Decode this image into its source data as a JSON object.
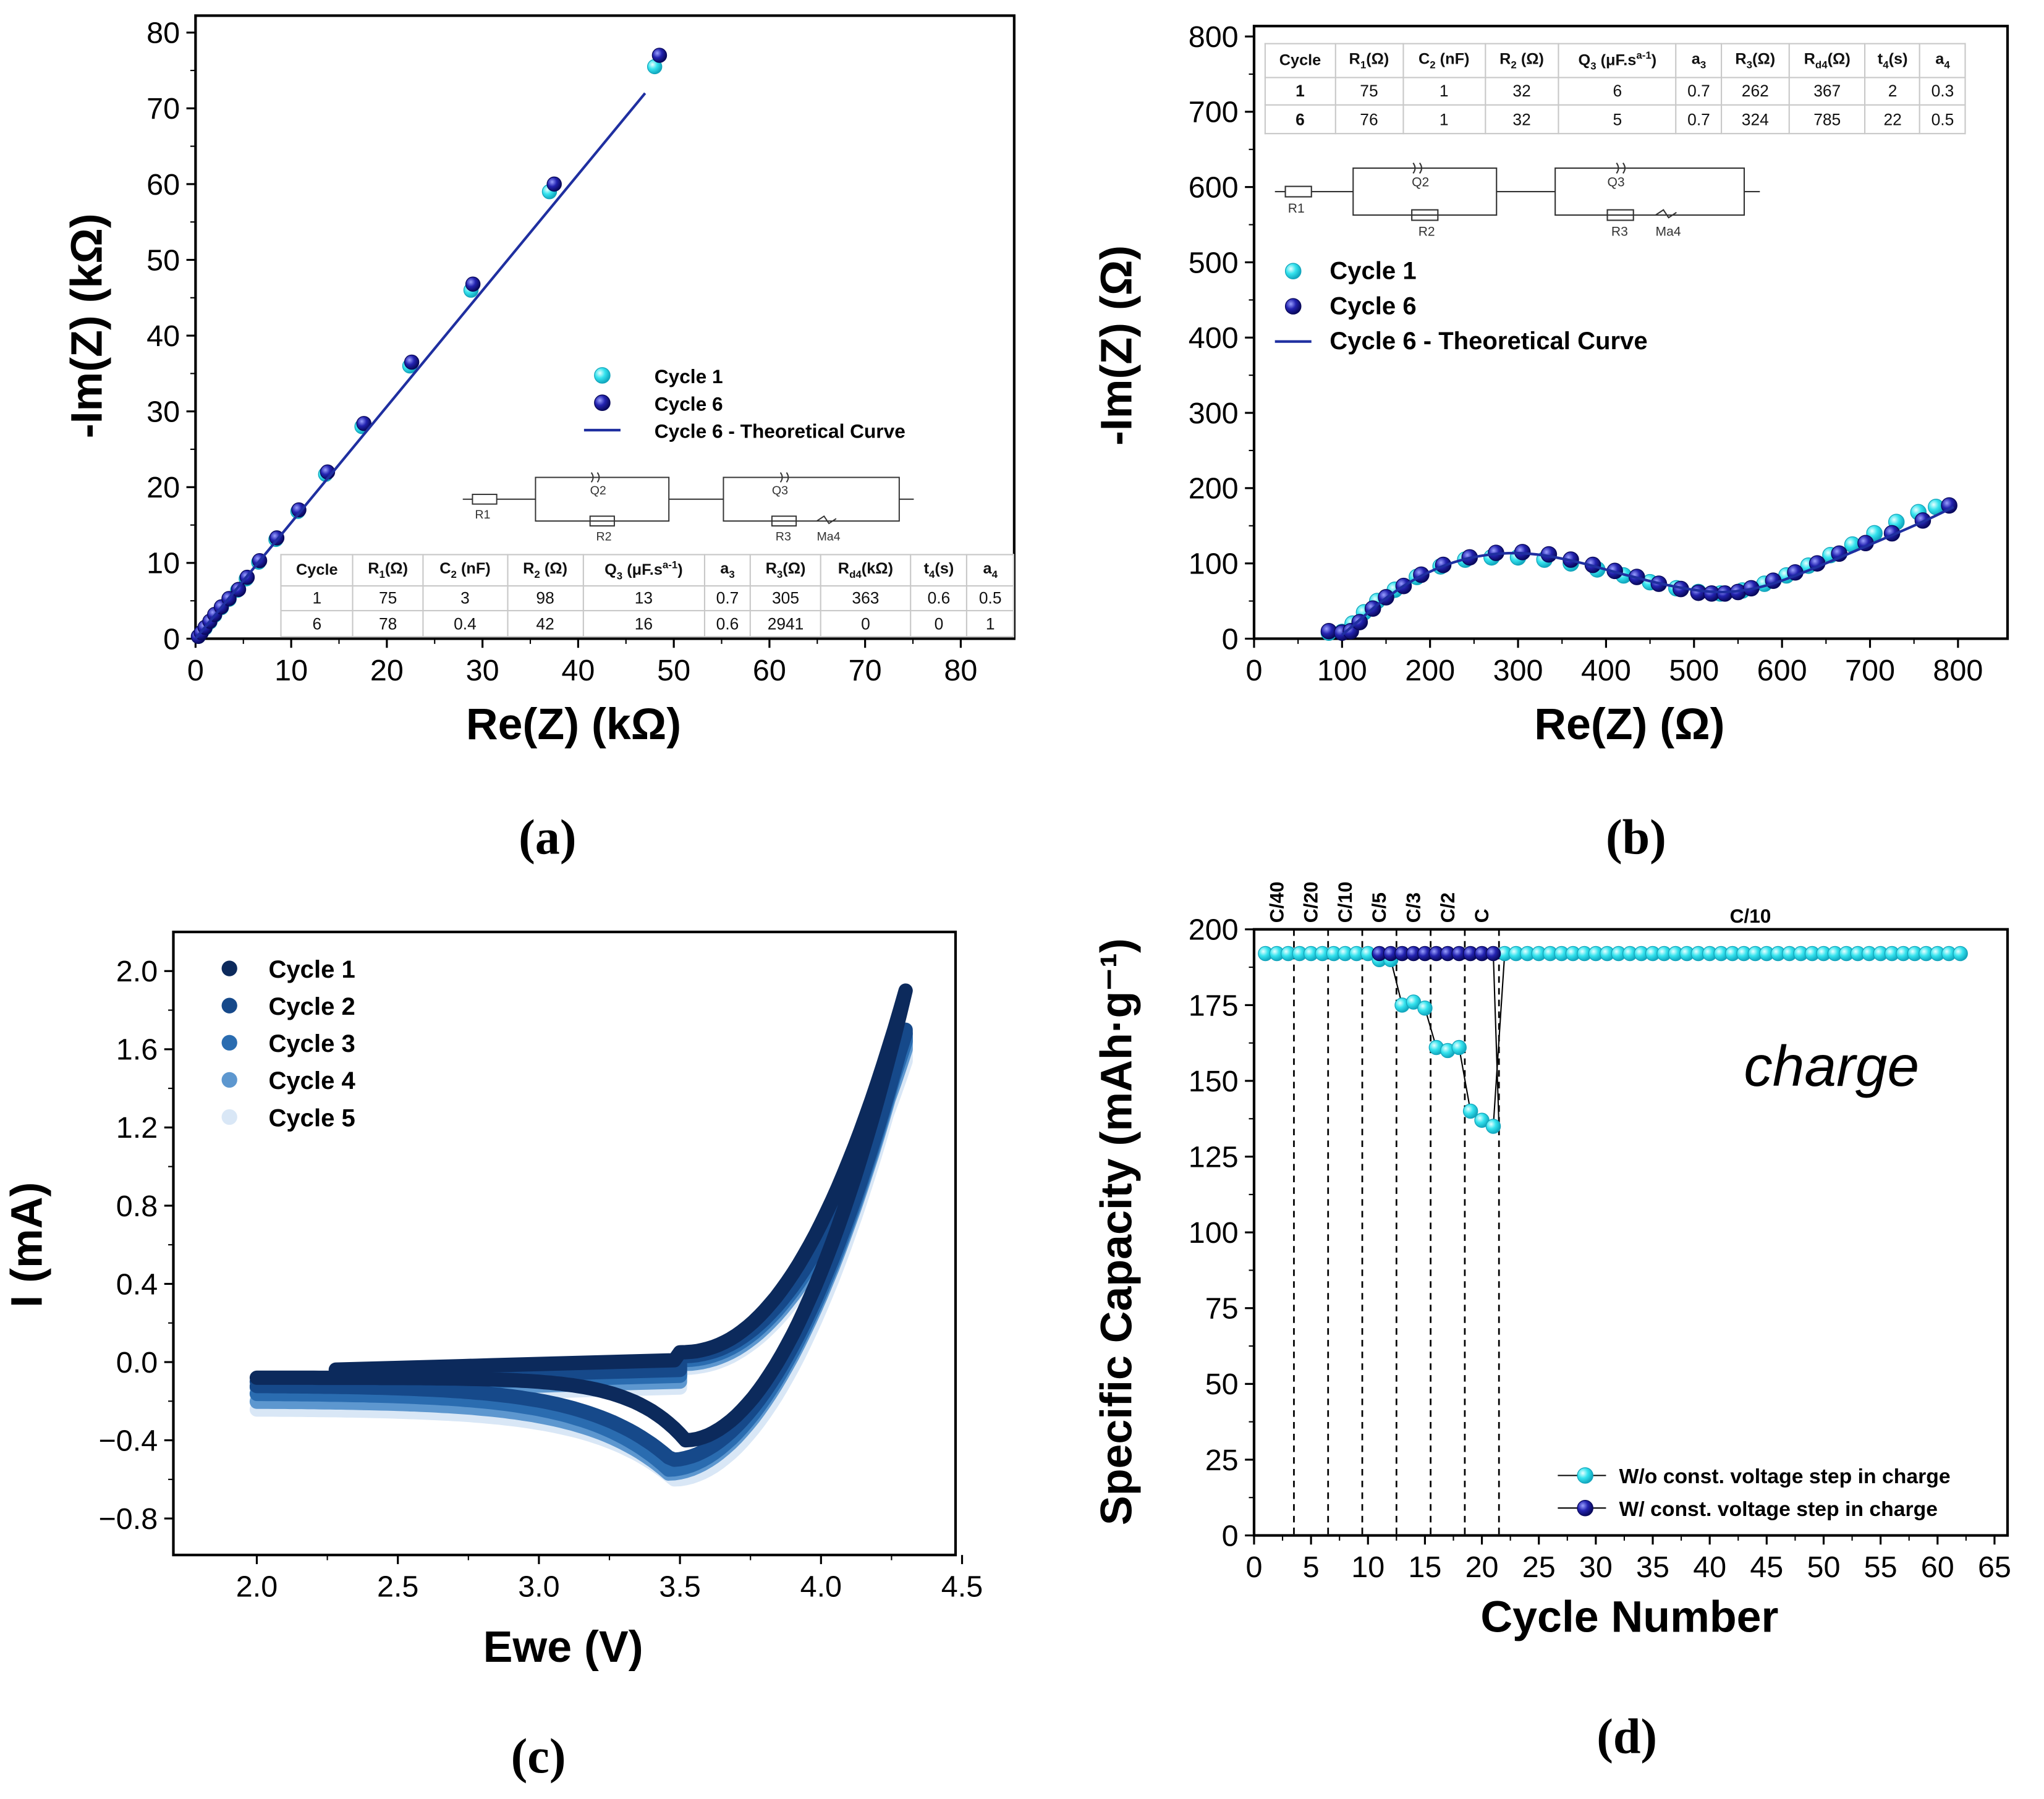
{
  "panel_labels": [
    "(a)",
    "(b)",
    "(c)",
    "(d)"
  ],
  "circuit": {
    "labels": [
      "R1",
      "Q2",
      "R2",
      "Q3",
      "R3",
      "Ma4"
    ]
  },
  "tables": {
    "a": {
      "header": [
        {
          "m": "Cycle"
        },
        {
          "m": "R",
          "sub": "1",
          "r": "(Ω)"
        },
        {
          "m": "C",
          "sub": "2",
          "r": " (nF)"
        },
        {
          "m": "R",
          "sub": "2",
          "r": " (Ω)"
        },
        {
          "m": "Q",
          "sub": "3",
          "r": " (μF.s",
          "sup": "a-1",
          "e": ")"
        },
        {
          "m": "a",
          "sub": "3"
        },
        {
          "m": "R",
          "sub": "3",
          "r": "(Ω)"
        },
        {
          "m": "R",
          "sub": "d4",
          "r": "(kΩ)"
        },
        {
          "m": "t",
          "sub": "4",
          "r": "(s)"
        },
        {
          "m": "a",
          "sub": "4"
        }
      ],
      "rows": [
        [
          "1",
          "75",
          "3",
          "98",
          "13",
          "0.7",
          "305",
          "363",
          "0.6",
          "0.5"
        ],
        [
          "6",
          "78",
          "0.4",
          "42",
          "16",
          "0.6",
          "2941",
          "0",
          "0",
          "1"
        ]
      ]
    },
    "b": {
      "header": [
        {
          "m": "Cycle"
        },
        {
          "m": "R",
          "sub": "1",
          "r": "(Ω)"
        },
        {
          "m": "C",
          "sub": "2",
          "r": " (nF)"
        },
        {
          "m": "R",
          "sub": "2",
          "r": " (Ω)"
        },
        {
          "m": "Q",
          "sub": "3",
          "r": " (μF.s",
          "sup": "a-1",
          "e": ")"
        },
        {
          "m": "a",
          "sub": "3"
        },
        {
          "m": "R",
          "sub": "3",
          "r": "(Ω)"
        },
        {
          "m": "R",
          "sub": "d4",
          "r": "(Ω)"
        },
        {
          "m": "t",
          "sub": "4",
          "r": "(s)"
        },
        {
          "m": "a",
          "sub": "4"
        }
      ],
      "rows": [
        [
          "1",
          "75",
          "1",
          "32",
          "6",
          "0.7",
          "262",
          "367",
          "2",
          "0.3"
        ],
        [
          "6",
          "76",
          "1",
          "32",
          "5",
          "0.7",
          "324",
          "785",
          "22",
          "0.5"
        ]
      ]
    }
  },
  "colors": {
    "cyan": "#35e3ee",
    "navy": "#1c1c9c",
    "line": "#1f2fa0",
    "cv": [
      "#0c2a5c",
      "#16498a",
      "#2a6cb0",
      "#5d97cf",
      "#d9e7f6"
    ]
  },
  "chart_data": [
    {
      "type": "scatter",
      "title": "",
      "xlabel": "Re(Z) (kΩ)",
      "ylabel": "-Im(Z) (kΩ)",
      "xlim": [
        0,
        80
      ],
      "ylim": [
        0,
        80
      ],
      "xticks": [
        "0",
        "10",
        "20",
        "30",
        "40",
        "50",
        "60",
        "70",
        "80"
      ],
      "yticks": [
        "0",
        "10",
        "20",
        "30",
        "40",
        "50",
        "60",
        "70",
        "80"
      ],
      "series": [
        {
          "name": "Cycle 1",
          "x": [
            0.3,
            0.6,
            1,
            1.5,
            2,
            2.7,
            3.5,
            4.4,
            5.3,
            6.6,
            8.4,
            10.7,
            13.6,
            17.4,
            22.4,
            28.8,
            37,
            48
          ],
          "y": [
            0.3,
            0.8,
            1.4,
            2.2,
            3.1,
            4.1,
            5.2,
            6.4,
            7.9,
            10.1,
            13.1,
            16.8,
            21.7,
            28,
            36,
            46,
            59,
            75.5
          ]
        },
        {
          "name": "Cycle 6",
          "x": [
            0.3,
            0.6,
            1,
            1.5,
            2,
            2.7,
            3.5,
            4.5,
            5.4,
            6.7,
            8.5,
            10.8,
            13.8,
            17.6,
            22.6,
            29,
            37.5,
            48.5
          ],
          "y": [
            0.3,
            0.8,
            1.5,
            2.3,
            3.2,
            4.2,
            5.3,
            6.5,
            8.1,
            10.3,
            13.3,
            17,
            22,
            28.4,
            36.5,
            46.8,
            60,
            77
          ]
        },
        {
          "name": "Cycle 6 - Theoretical Curve",
          "x": [
            0,
            47
          ],
          "y": [
            0,
            72
          ]
        }
      ],
      "legend": "center-right"
    },
    {
      "type": "scatter",
      "xlabel": "Re(Z) (Ω)",
      "ylabel": "-Im(Z) (Ω)",
      "xlim": [
        0,
        800
      ],
      "ylim": [
        0,
        800
      ],
      "xticks": [
        "0",
        "100",
        "200",
        "300",
        "400",
        "500",
        "600",
        "700",
        "800"
      ],
      "yticks": [
        "0",
        "100",
        "200",
        "300",
        "400",
        "500",
        "600",
        "700",
        "800"
      ],
      "series": [
        {
          "name": "Cycle 1",
          "x": [
            85,
            100,
            112,
            125,
            140,
            160,
            185,
            212,
            240,
            270,
            300,
            330,
            360,
            390,
            420,
            450,
            480,
            505,
            530,
            555,
            580,
            605,
            630,
            655,
            680,
            705,
            730,
            755,
            775
          ],
          "y": [
            8,
            9,
            20,
            35,
            50,
            65,
            82,
            96,
            105,
            108,
            108,
            105,
            100,
            92,
            84,
            75,
            67,
            62,
            60,
            64,
            73,
            84,
            97,
            111,
            125,
            140,
            155,
            168,
            175
          ]
        },
        {
          "name": "Cycle 6",
          "x": [
            85,
            100,
            110,
            120,
            135,
            150,
            170,
            190,
            215,
            245,
            275,
            305,
            335,
            360,
            385,
            410,
            435,
            460,
            485,
            505,
            520,
            535,
            550,
            565,
            590,
            615,
            640,
            665,
            695,
            725,
            760,
            790
          ],
          "y": [
            10,
            8,
            10,
            22,
            40,
            55,
            70,
            85,
            98,
            108,
            114,
            115,
            112,
            105,
            98,
            90,
            82,
            73,
            66,
            61,
            60,
            60,
            62,
            67,
            77,
            88,
            100,
            113,
            127,
            140,
            157,
            177
          ]
        },
        {
          "name": "Cycle 6 - Theoretical Curve",
          "x": [
            100,
            120,
            150,
            190,
            240,
            300,
            360,
            420,
            480,
            530,
            580,
            640,
            700,
            760,
            795
          ],
          "y": [
            5,
            25,
            55,
            85,
            108,
            116,
            105,
            85,
            68,
            60,
            68,
            95,
            125,
            155,
            175
          ]
        }
      ],
      "legend": "top-left"
    },
    {
      "type": "line",
      "xlabel": "Ewe (V)",
      "ylabel": "I (mA)",
      "xlim": [
        2.0,
        4.5
      ],
      "ylim": [
        -0.8,
        2.0
      ],
      "xticks": [
        "2.0",
        "2.5",
        "3.0",
        "3.5",
        "4.0",
        "4.5"
      ],
      "yticks": [
        "−0.8",
        "−0.4",
        "0.0",
        "0.4",
        "0.8",
        "1.2",
        "1.6",
        "2.0"
      ],
      "series": [
        {
          "name": "Cycle 1",
          "vmax": 1.9,
          "peak": -0.4,
          "peak_v": 3.52
        },
        {
          "name": "Cycle 2",
          "vmax": 1.7,
          "peak": -0.5,
          "peak_v": 3.47
        },
        {
          "name": "Cycle 3",
          "vmax": 1.68,
          "peak": -0.55,
          "peak_v": 3.46
        },
        {
          "name": "Cycle 4",
          "vmax": 1.66,
          "peak": -0.57,
          "peak_v": 3.46
        },
        {
          "name": "Cycle 5",
          "vmax": 1.62,
          "peak": -0.6,
          "peak_v": 3.48
        }
      ],
      "legend": "top-left"
    },
    {
      "type": "scatter",
      "xlabel": "Cycle Number",
      "ylabel": "Specific Capacity (mAh·g⁻¹)",
      "xlim": [
        0,
        65
      ],
      "ylim": [
        0,
        200
      ],
      "xticks": [
        "0",
        "5",
        "10",
        "15",
        "20",
        "25",
        "30",
        "35",
        "40",
        "45",
        "50",
        "55",
        "60",
        "65"
      ],
      "yticks": [
        "0",
        "25",
        "50",
        "75",
        "100",
        "125",
        "150",
        "175",
        "200"
      ],
      "annotation": "charge",
      "rate_labels": [
        {
          "label": "C/40",
          "x": 2
        },
        {
          "label": "C/20",
          "x": 5
        },
        {
          "label": "C/10",
          "x": 8
        },
        {
          "label": "C/5",
          "x": 11
        },
        {
          "label": "C/3",
          "x": 14
        },
        {
          "label": "C/2",
          "x": 17
        },
        {
          "label": "C",
          "x": 20
        },
        {
          "label": "C/10",
          "x": 43
        }
      ],
      "dividers": [
        3.5,
        6.5,
        9.5,
        12.5,
        15.5,
        18.5,
        21.5
      ],
      "series": [
        {
          "name": "W/o const. voltage step in charge",
          "x_start": 1,
          "y": [
            192,
            192,
            192,
            192,
            192,
            192,
            192,
            192,
            192,
            192,
            190,
            190,
            175,
            176,
            174,
            161,
            160,
            161,
            140,
            137,
            135,
            192,
            192,
            192,
            192,
            192,
            192,
            192,
            192,
            192,
            192,
            192,
            192,
            192,
            192,
            192,
            192,
            192,
            192,
            192,
            192,
            192,
            192,
            192,
            192,
            192,
            192,
            192,
            192,
            192,
            192,
            192,
            192,
            192,
            192,
            192,
            192,
            192,
            192,
            192,
            192,
            192
          ]
        },
        {
          "name": "W/ const. voltage step in charge",
          "x_start": 11,
          "y": [
            192,
            192,
            192,
            192,
            192,
            192,
            192,
            192,
            192,
            192,
            192
          ]
        }
      ],
      "legend": "bottom-right"
    }
  ]
}
